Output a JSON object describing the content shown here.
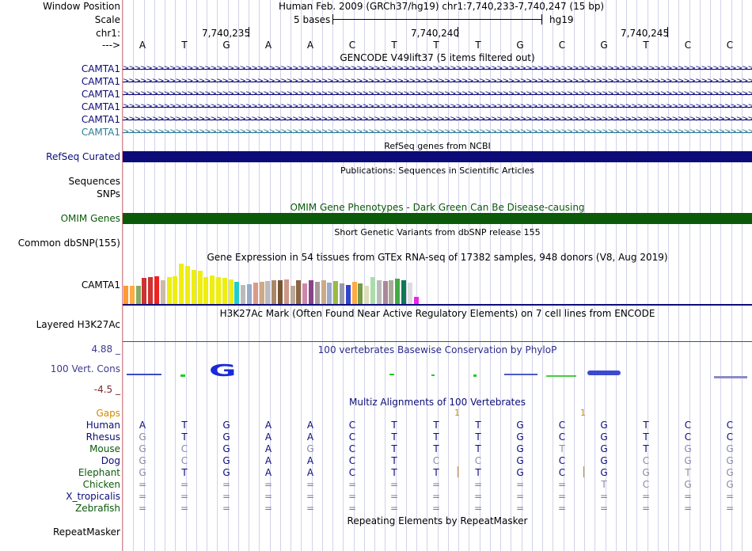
{
  "header": {
    "window_position_label": "Window Position",
    "scale_label": "Scale",
    "chr_label": "chr1:",
    "arrow_label": "--->",
    "assembly_title": "Human Feb. 2009 (GRCh37/hg19)   chr1:7,740,233-7,740,247 (15 bp)",
    "scale_text": "5 bases",
    "scale_db": "hg19",
    "coord_ticks": [
      "7,740,235",
      "7,740,240",
      "7,740,245"
    ],
    "bases": [
      "A",
      "T",
      "G",
      "A",
      "A",
      "C",
      "T",
      "T",
      "T",
      "G",
      "C",
      "G",
      "T",
      "C",
      "C"
    ]
  },
  "gencode": {
    "title": "GENCODE V49lift37 (5 items filtered out)",
    "labels": [
      "CAMTA1",
      "CAMTA1",
      "CAMTA1",
      "CAMTA1",
      "CAMTA1",
      "CAMTA1"
    ],
    "label_colors": [
      "#0c0c78",
      "#0c0c78",
      "#0c0c78",
      "#0c0c78",
      "#0c0c78",
      "#2c7c96"
    ]
  },
  "refseq": {
    "title": "RefSeq genes from NCBI",
    "label": "RefSeq Curated",
    "color": "#0c0c78"
  },
  "publications": {
    "title": "Publications: Sequences in Scientific Articles",
    "labels": [
      "Sequences",
      "SNPs"
    ]
  },
  "omim": {
    "title": "OMIM Gene Phenotypes - Dark Green Can Be Disease-causing",
    "label": "OMIM Genes",
    "color": "#0a5a0a"
  },
  "dbsnp": {
    "title": "Short Genetic Variants from dbSNP release 155",
    "label": "Common dbSNP(155)"
  },
  "gtex": {
    "title": "Gene Expression in 54 tissues from GTEx RNA-seq of 17382 samples, 948 donors (V8, Aug 2019)",
    "label": "CAMTA1",
    "bars": [
      {
        "v": 0.44,
        "c": "#ff9933"
      },
      {
        "v": 0.44,
        "c": "#ffaa44"
      },
      {
        "v": 0.44,
        "c": "#88aa66"
      },
      {
        "v": 0.64,
        "c": "#cc3333"
      },
      {
        "v": 0.66,
        "c": "#cc3333"
      },
      {
        "v": 0.68,
        "c": "#ee2222"
      },
      {
        "v": 0.58,
        "c": "#ccbbaa"
      },
      {
        "v": 0.66,
        "c": "#eeee11"
      },
      {
        "v": 0.68,
        "c": "#eeee11"
      },
      {
        "v": 0.98,
        "c": "#eeee11"
      },
      {
        "v": 0.92,
        "c": "#eeee11"
      },
      {
        "v": 0.82,
        "c": "#eeee11"
      },
      {
        "v": 0.8,
        "c": "#eeee11"
      },
      {
        "v": 0.66,
        "c": "#eeee11"
      },
      {
        "v": 0.7,
        "c": "#eeee11"
      },
      {
        "v": 0.66,
        "c": "#eeee11"
      },
      {
        "v": 0.64,
        "c": "#eeee11"
      },
      {
        "v": 0.6,
        "c": "#eeee11"
      },
      {
        "v": 0.54,
        "c": "#22cccc"
      },
      {
        "v": 0.46,
        "c": "#bbbbbb"
      },
      {
        "v": 0.48,
        "c": "#99aacc"
      },
      {
        "v": 0.52,
        "c": "#dd9988"
      },
      {
        "v": 0.54,
        "c": "#ccaa88"
      },
      {
        "v": 0.56,
        "c": "#bbbbbb"
      },
      {
        "v": 0.58,
        "c": "#aa8866"
      },
      {
        "v": 0.58,
        "c": "#775533"
      },
      {
        "v": 0.6,
        "c": "#cc9988"
      },
      {
        "v": 0.44,
        "c": "#bbaa99"
      },
      {
        "v": 0.58,
        "c": "#886644"
      },
      {
        "v": 0.5,
        "c": "#cc88aa"
      },
      {
        "v": 0.58,
        "c": "#884488"
      },
      {
        "v": 0.54,
        "c": "#aa9999"
      },
      {
        "v": 0.58,
        "c": "#ccaa88"
      },
      {
        "v": 0.52,
        "c": "#99aacc"
      },
      {
        "v": 0.56,
        "c": "#99bb44"
      },
      {
        "v": 0.5,
        "c": "#9999aa"
      },
      {
        "v": 0.46,
        "c": "#3344cc"
      },
      {
        "v": 0.54,
        "c": "#ffaa44"
      },
      {
        "v": 0.5,
        "c": "#779944"
      },
      {
        "v": 0.44,
        "c": "#ddddbb"
      },
      {
        "v": 0.66,
        "c": "#aaddaa"
      },
      {
        "v": 0.58,
        "c": "#bbbbbb"
      },
      {
        "v": 0.56,
        "c": "#aa8899"
      },
      {
        "v": 0.58,
        "c": "#aaaa99"
      },
      {
        "v": 0.62,
        "c": "#44aa44"
      },
      {
        "v": 0.58,
        "c": "#117755"
      },
      {
        "v": 0.52,
        "c": "#dddddd"
      },
      {
        "v": 0.18,
        "c": "#ee22ee"
      }
    ]
  },
  "h3k27ac": {
    "title": "H3K27Ac Mark (Often Found Near Active Regulatory Elements) on 7 cell lines from ENCODE",
    "label": "Layered H3K27Ac"
  },
  "phylop": {
    "title": "100 vertebrates Basewise Conservation by PhyloP",
    "label": "100 Vert. Cons",
    "max_label": "4.88 _",
    "min_label": "-4.5 _",
    "glyph": "G"
  },
  "multiz": {
    "title": "Multiz Alignments of 100 Vertebrates",
    "gaps_label": "Gaps",
    "gap_marks": [
      "1",
      "1"
    ],
    "species": [
      {
        "name": "Human",
        "color": "#0c0c78",
        "bases": [
          "A",
          "T",
          "G",
          "A",
          "A",
          "C",
          "T",
          "T",
          "T",
          "G",
          "C",
          "G",
          "T",
          "C",
          "C"
        ]
      },
      {
        "name": "Rhesus",
        "color": "#0c0c78",
        "bases": [
          "G",
          "T",
          "G",
          "A",
          "A",
          "C",
          "T",
          "T",
          "T",
          "G",
          "C",
          "G",
          "T",
          "C",
          "C"
        ]
      },
      {
        "name": "Mouse",
        "color": "#0a5a0a",
        "bases": [
          "G",
          "C",
          "G",
          "A",
          "G",
          "C",
          "T",
          "T",
          "T",
          "G",
          "T",
          "G",
          "T",
          "G",
          "G"
        ]
      },
      {
        "name": "Dog",
        "color": "#0c0c78",
        "bases": [
          "G",
          "C",
          "G",
          "A",
          "A",
          "C",
          "T",
          "C",
          "C",
          "G",
          "C",
          "G",
          "C",
          "G",
          "G"
        ]
      },
      {
        "name": "Elephant",
        "color": "#0a5a0a",
        "bases": [
          "G",
          "T",
          "G",
          "A",
          "A",
          "C",
          "T",
          "T",
          "T",
          "G",
          "C",
          "G",
          "G",
          "T",
          "G"
        ]
      },
      {
        "name": "Chicken",
        "color": "#0a5a0a",
        "bases": [
          "=",
          "=",
          "=",
          "=",
          "=",
          "=",
          "=",
          "=",
          "=",
          "=",
          "=",
          "T",
          "C",
          "G",
          "G"
        ]
      },
      {
        "name": "X_tropicalis",
        "color": "#0c0c78",
        "bases": [
          "=",
          "=",
          "=",
          "=",
          "=",
          "=",
          "=",
          "=",
          "=",
          "=",
          "=",
          "=",
          "=",
          "=",
          "="
        ]
      },
      {
        "name": "Zebrafish",
        "color": "#0a5a0a",
        "bases": [
          "=",
          "=",
          "=",
          "=",
          "=",
          "=",
          "=",
          "=",
          "=",
          "=",
          "=",
          "=",
          "=",
          "=",
          "="
        ]
      }
    ]
  },
  "repeatmasker": {
    "title": "Repeating Elements by RepeatMasker",
    "label": "RepeatMasker"
  }
}
